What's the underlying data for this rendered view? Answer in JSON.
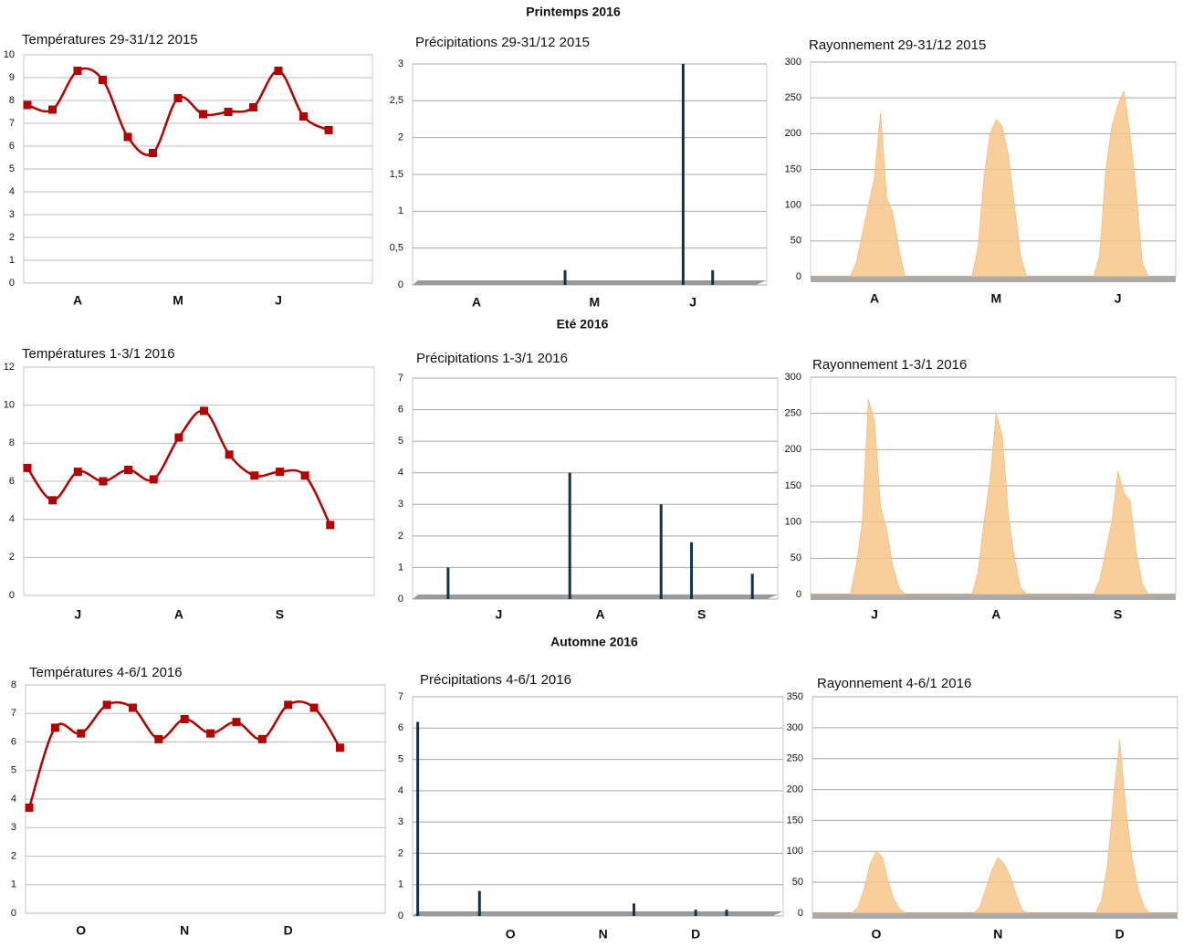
{
  "section_titles": [
    "Printemps 2016",
    "Eté 2016",
    "Automne 2016"
  ],
  "chart_data": [
    {
      "type": "line",
      "title": "Températures 29-31/12 2015",
      "color": "#b30000",
      "categories": [
        null,
        null,
        "A",
        null,
        null,
        null,
        "M",
        null,
        null,
        null,
        "J",
        null,
        null
      ],
      "values": [
        7.8,
        7.6,
        9.3,
        8.9,
        6.4,
        5.7,
        8.1,
        7.4,
        7.5,
        7.7,
        9.3,
        7.3,
        6.7
      ],
      "ylim": [
        0,
        10
      ],
      "yticks": [
        0,
        1,
        2,
        3,
        4,
        5,
        6,
        7,
        8,
        9,
        10
      ],
      "grid": true
    },
    {
      "type": "bar",
      "title": "Précipitations 29-31/12 2015",
      "color": "#13334d",
      "categories": [
        null,
        null,
        null,
        null,
        null,
        null,
        "A",
        null,
        null,
        null,
        null,
        null,
        null,
        null,
        null,
        null,
        null,
        null,
        "M",
        null,
        null,
        null,
        null,
        null,
        null,
        null,
        null,
        null,
        "J",
        null,
        null,
        null,
        null,
        null,
        null,
        null
      ],
      "values": [
        0,
        0,
        0,
        0,
        0,
        0,
        0,
        0,
        0,
        0,
        0,
        0,
        0,
        0,
        0,
        0.2,
        0,
        0,
        0,
        0,
        0,
        0,
        0,
        0,
        0,
        0,
        0,
        3,
        0,
        0,
        0.2,
        0,
        0,
        0,
        0,
        0
      ],
      "ylim": [
        0,
        3
      ],
      "yticks": [
        0,
        {
          "value": 0.5,
          "label": "0,5"
        },
        1,
        {
          "value": 1.5,
          "label": "1,5"
        },
        2,
        {
          "value": 2.5,
          "label": "2,5"
        },
        3
      ],
      "grid": true
    },
    {
      "type": "area",
      "title": "Rayonnement 29-31/12 2015",
      "color": "#f7c58a",
      "categories": [
        null,
        null,
        null,
        null,
        null,
        null,
        null,
        null,
        null,
        null,
        "A",
        null,
        null,
        null,
        null,
        null,
        null,
        null,
        null,
        null,
        null,
        null,
        null,
        null,
        null,
        null,
        null,
        null,
        null,
        null,
        "M",
        null,
        null,
        null,
        null,
        null,
        null,
        null,
        null,
        null,
        null,
        null,
        null,
        null,
        null,
        null,
        null,
        null,
        null,
        null,
        "J",
        null,
        null,
        null,
        null,
        null,
        null,
        null,
        null,
        null
      ],
      "values": [
        0,
        0,
        0,
        0,
        0,
        0,
        0,
        20,
        60,
        100,
        140,
        230,
        110,
        90,
        40,
        0,
        0,
        0,
        0,
        0,
        0,
        0,
        0,
        0,
        0,
        0,
        0,
        40,
        140,
        200,
        220,
        210,
        170,
        100,
        30,
        0,
        0,
        0,
        0,
        0,
        0,
        0,
        0,
        0,
        0,
        0,
        0,
        30,
        150,
        210,
        240,
        260,
        200,
        120,
        20,
        0,
        0,
        0,
        0,
        0
      ],
      "ylim": [
        0,
        300
      ],
      "yticks": [
        0,
        50,
        100,
        150,
        200,
        250,
        300
      ],
      "grid": true
    },
    {
      "type": "line",
      "title": "Températures 1-3/1 2016",
      "color": "#b30000",
      "categories": [
        null,
        null,
        "J",
        null,
        null,
        null,
        "A",
        null,
        null,
        null,
        "S",
        null,
        null
      ],
      "values": [
        6.7,
        5,
        6.5,
        6,
        6.6,
        6.1,
        8.3,
        9.7,
        7.4,
        6.3,
        6.5,
        6.3,
        3.7
      ],
      "ylim": [
        0,
        12
      ],
      "yticks": [
        0,
        2,
        4,
        6,
        8,
        10,
        12
      ],
      "grid": true
    },
    {
      "type": "bar",
      "title": "Précipitations 1-3/1 2016",
      "color": "#13334d",
      "categories": [
        null,
        null,
        null,
        null,
        null,
        null,
        null,
        null,
        "J",
        null,
        null,
        null,
        null,
        null,
        null,
        null,
        null,
        null,
        "A",
        null,
        null,
        null,
        null,
        null,
        null,
        null,
        null,
        null,
        "S",
        null,
        null,
        null,
        null,
        null,
        null,
        null
      ],
      "values": [
        0,
        0,
        0,
        1,
        0,
        0,
        0,
        0,
        0,
        0,
        0,
        0,
        0,
        0,
        0,
        4,
        0,
        0,
        0,
        0,
        0,
        0,
        0,
        0,
        3,
        0,
        0,
        1.8,
        0,
        0,
        0,
        0,
        0,
        0.8,
        0,
        0
      ],
      "ylim": [
        0,
        7
      ],
      "yticks": [
        0,
        1,
        2,
        3,
        4,
        5,
        6,
        7
      ],
      "grid": true
    },
    {
      "type": "area",
      "title": "Rayonnement 1-3/1 2016",
      "color": "#f7c58a",
      "categories": [
        null,
        null,
        null,
        null,
        null,
        null,
        null,
        null,
        null,
        null,
        "J",
        null,
        null,
        null,
        null,
        null,
        null,
        null,
        null,
        null,
        null,
        null,
        null,
        null,
        null,
        null,
        null,
        null,
        null,
        null,
        "A",
        null,
        null,
        null,
        null,
        null,
        null,
        null,
        null,
        null,
        null,
        null,
        null,
        null,
        null,
        null,
        null,
        null,
        null,
        null,
        "S",
        null,
        null,
        null,
        null,
        null,
        null,
        null,
        null,
        null
      ],
      "values": [
        0,
        0,
        0,
        0,
        0,
        0,
        0,
        40,
        100,
        270,
        240,
        120,
        90,
        40,
        10,
        0,
        0,
        0,
        0,
        0,
        0,
        0,
        0,
        0,
        0,
        0,
        0,
        30,
        100,
        160,
        250,
        220,
        110,
        50,
        10,
        0,
        0,
        0,
        0,
        0,
        0,
        0,
        0,
        0,
        0,
        0,
        0,
        20,
        60,
        100,
        170,
        140,
        130,
        60,
        15,
        0,
        0,
        0,
        0,
        0
      ],
      "ylim": [
        0,
        300
      ],
      "yticks": [
        0,
        50,
        100,
        150,
        200,
        250,
        300
      ],
      "grid": true
    },
    {
      "type": "line",
      "title": "Températures 4-6/1 2016",
      "color": "#b30000",
      "categories": [
        null,
        null,
        "O",
        null,
        null,
        null,
        "N",
        null,
        null,
        null,
        "D",
        null,
        null
      ],
      "values": [
        3.7,
        6.5,
        6.3,
        7.3,
        7.2,
        6.1,
        6.8,
        6.3,
        6.7,
        6.1,
        7.3,
        7.2,
        5.8
      ],
      "ylim": [
        0,
        8
      ],
      "yticks": [
        0,
        1,
        2,
        3,
        4,
        5,
        6,
        7,
        8
      ],
      "grid": true
    },
    {
      "type": "bar",
      "title": "Précipitations 4-6/1 2016",
      "color": "#13334d",
      "categories": [
        null,
        null,
        null,
        null,
        null,
        null,
        null,
        null,
        null,
        "O",
        null,
        null,
        null,
        null,
        null,
        null,
        null,
        null,
        "N",
        null,
        null,
        null,
        null,
        null,
        null,
        null,
        null,
        "D",
        null,
        null,
        null,
        null,
        null,
        null,
        null,
        null
      ],
      "values": [
        6.2,
        0,
        0,
        0,
        0,
        0,
        0.8,
        0,
        0,
        0,
        0,
        0,
        0,
        0,
        0,
        0,
        0,
        0,
        0,
        0,
        0,
        0.4,
        0,
        0,
        0,
        0,
        0,
        0.2,
        0,
        0,
        0.2,
        0,
        0,
        0,
        0,
        0
      ],
      "ylim": [
        0,
        7
      ],
      "yticks": [
        0,
        1,
        2,
        3,
        4,
        5,
        6,
        7
      ],
      "grid": true
    },
    {
      "type": "area",
      "title": "Rayonnement 4-6/1 2016",
      "color": "#f7c58a",
      "categories": [
        null,
        null,
        null,
        null,
        null,
        null,
        null,
        null,
        null,
        null,
        "O",
        null,
        null,
        null,
        null,
        null,
        null,
        null,
        null,
        null,
        null,
        null,
        null,
        null,
        null,
        null,
        null,
        null,
        null,
        null,
        "N",
        null,
        null,
        null,
        null,
        null,
        null,
        null,
        null,
        null,
        null,
        null,
        null,
        null,
        null,
        null,
        null,
        null,
        null,
        null,
        "D",
        null,
        null,
        null,
        null,
        null,
        null,
        null,
        null,
        null
      ],
      "values": [
        0,
        0,
        0,
        0,
        0,
        0,
        0,
        10,
        40,
        80,
        100,
        90,
        50,
        20,
        5,
        0,
        0,
        0,
        0,
        0,
        0,
        0,
        0,
        0,
        0,
        0,
        0,
        10,
        40,
        70,
        90,
        80,
        60,
        30,
        5,
        0,
        0,
        0,
        0,
        0,
        0,
        0,
        0,
        0,
        0,
        0,
        0,
        20,
        80,
        190,
        280,
        170,
        90,
        40,
        10,
        0,
        0,
        0,
        0,
        0
      ],
      "ylim": [
        0,
        350
      ],
      "yticks": [
        0,
        50,
        100,
        150,
        200,
        250,
        300,
        350
      ],
      "grid": true
    }
  ]
}
